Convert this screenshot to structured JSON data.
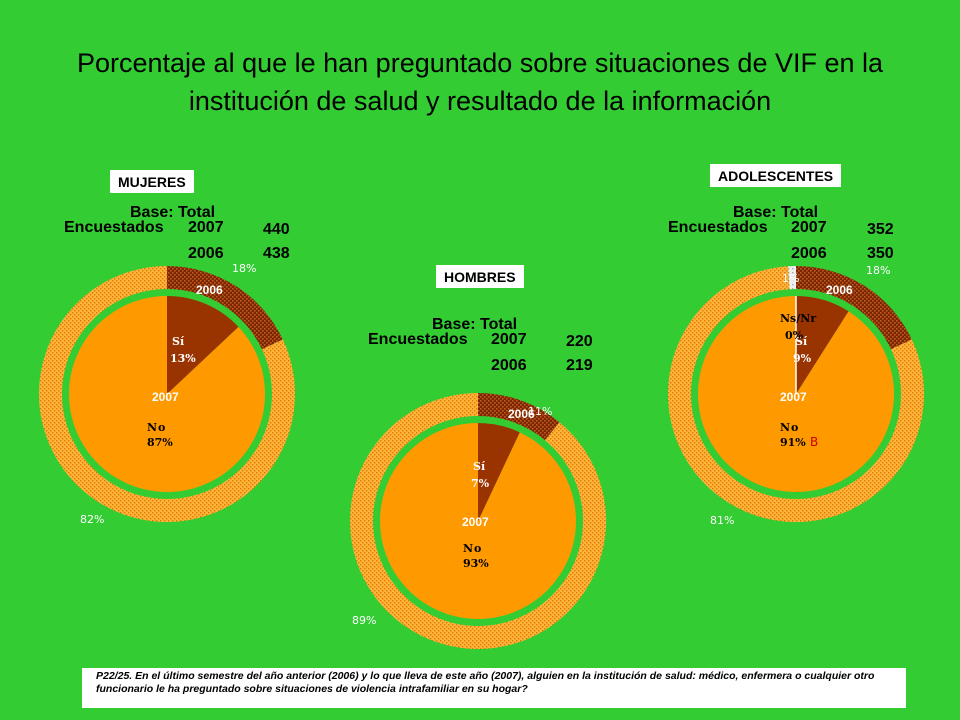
{
  "title": "Porcentaje al que le han preguntado sobre situaciones de VIF en la institución de salud y resultado de la información",
  "colors": {
    "background": "#33cc33",
    "no": "#ff9900",
    "si": "#993300",
    "nsnr": "#d9d9d9"
  },
  "chart_data": [
    {
      "type": "pie",
      "group": "MUJERES",
      "base_label": "Base: Total",
      "sample_label": "Encuestados",
      "sample": [
        {
          "year": "2007",
          "n": "440"
        },
        {
          "year": "2006",
          "n": "438"
        }
      ],
      "inner_year": "2007",
      "outer_year": "2006",
      "inner": [
        {
          "label": "No",
          "value": 87,
          "text": "87%"
        },
        {
          "label": "Sí",
          "value": 13,
          "text": "13%"
        }
      ],
      "outer": [
        {
          "value": 82,
          "text": "82%"
        },
        {
          "value": 18,
          "text": "18%"
        }
      ]
    },
    {
      "type": "pie",
      "group": "HOMBRES",
      "base_label": "Base: Total",
      "sample_label": "Encuestados",
      "sample": [
        {
          "year": "2007",
          "n": "220"
        },
        {
          "year": "2006",
          "n": "219"
        }
      ],
      "inner_year": "2007",
      "outer_year": "2006",
      "inner": [
        {
          "label": "No",
          "value": 93,
          "text": "93%"
        },
        {
          "label": "Sí",
          "value": 7,
          "text": "7%"
        }
      ],
      "outer": [
        {
          "value": 89,
          "text": "89%"
        },
        {
          "value": 11,
          "text": "11%"
        }
      ]
    },
    {
      "type": "pie",
      "group": "ADOLESCENTES",
      "base_label": "Base: Total",
      "sample_label": "Encuestados",
      "sample": [
        {
          "year": "2007",
          "n": "352"
        },
        {
          "year": "2006",
          "n": "350"
        }
      ],
      "inner_year": "2007",
      "outer_year": "2006",
      "inner": [
        {
          "label": "No",
          "value": 91,
          "text": "91%"
        },
        {
          "label": "Sí",
          "value": 9,
          "text": "9%"
        },
        {
          "label": "Ns/Nr",
          "value": 0,
          "text": "0%"
        }
      ],
      "inner_mark": "B",
      "outer": [
        {
          "value": 81,
          "text": "81%"
        },
        {
          "value": 18,
          "text": "18%"
        },
        {
          "value": 1,
          "text": "1%"
        }
      ]
    }
  ],
  "footnote": "P22/25. En el último semestre del año anterior (2006) y lo que lleva de este año (2007), alguien en la institución de salud: médico, enfermera o cualquier otro funcionario le ha preguntado sobre situaciones de violencia intrafamiliar en su hogar?"
}
